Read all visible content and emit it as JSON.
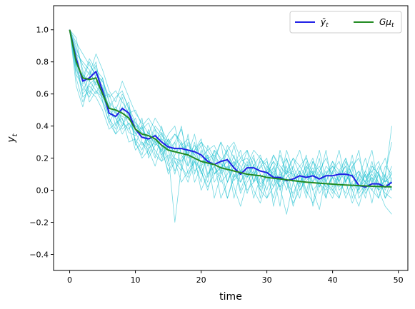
{
  "chart_data": {
    "type": "line",
    "title": "",
    "xlabel": "time",
    "ylabel": "y_t",
    "xlim": [
      -2.45,
      51.45
    ],
    "ylim": [
      -0.5,
      1.15
    ],
    "xticks": [
      0,
      10,
      20,
      30,
      40,
      50
    ],
    "yticks": [
      -0.4,
      -0.2,
      0.0,
      0.2,
      0.4,
      0.6,
      0.8,
      1.0
    ],
    "xtick_labels": [
      "0",
      "10",
      "20",
      "30",
      "40",
      "50"
    ],
    "ytick_labels": [
      "−0.4",
      "−0.2",
      "0.0",
      "0.2",
      "0.4",
      "0.6",
      "0.8",
      "1.0"
    ],
    "grid": false,
    "legend_position": "top-right",
    "colors": {
      "paths": "#17becf",
      "mean": "#1f1fe6",
      "expected": "#228b22"
    },
    "x": [
      0,
      1,
      2,
      3,
      4,
      5,
      6,
      7,
      8,
      9,
      10,
      11,
      12,
      13,
      14,
      15,
      16,
      17,
      18,
      19,
      20,
      21,
      22,
      23,
      24,
      25,
      26,
      27,
      28,
      29,
      30,
      31,
      32,
      33,
      34,
      35,
      36,
      37,
      38,
      39,
      40,
      41,
      42,
      43,
      44,
      45,
      46,
      47,
      48,
      49
    ],
    "series": [
      {
        "name": "ȳ_t",
        "role": "mean",
        "values": [
          1.0,
          0.82,
          0.68,
          0.7,
          0.74,
          0.62,
          0.48,
          0.46,
          0.51,
          0.48,
          0.38,
          0.33,
          0.32,
          0.34,
          0.3,
          0.27,
          0.26,
          0.26,
          0.25,
          0.24,
          0.22,
          0.18,
          0.16,
          0.18,
          0.19,
          0.14,
          0.1,
          0.14,
          0.14,
          0.12,
          0.11,
          0.08,
          0.08,
          0.06,
          0.07,
          0.09,
          0.08,
          0.09,
          0.07,
          0.09,
          0.09,
          0.1,
          0.1,
          0.09,
          0.03,
          0.02,
          0.04,
          0.04,
          0.02,
          0.05
        ]
      },
      {
        "name": "Gμ_t",
        "role": "expected",
        "values": [
          1.0,
          0.8,
          0.7,
          0.69,
          0.7,
          0.6,
          0.51,
          0.5,
          0.48,
          0.45,
          0.38,
          0.35,
          0.34,
          0.32,
          0.28,
          0.25,
          0.24,
          0.23,
          0.22,
          0.2,
          0.18,
          0.17,
          0.16,
          0.14,
          0.13,
          0.12,
          0.11,
          0.1,
          0.095,
          0.09,
          0.08,
          0.075,
          0.07,
          0.065,
          0.06,
          0.055,
          0.05,
          0.047,
          0.044,
          0.041,
          0.038,
          0.035,
          0.033,
          0.031,
          0.029,
          0.027,
          0.025,
          0.023,
          0.022,
          0.021
        ]
      }
    ],
    "sample_paths": [
      [
        1.0,
        0.78,
        0.62,
        0.71,
        0.8,
        0.55,
        0.42,
        0.5,
        0.4,
        0.52,
        0.3,
        0.22,
        0.36,
        0.28,
        0.4,
        0.18,
        0.3,
        0.15,
        0.35,
        0.1,
        0.25,
        0.08,
        0.2,
        0.3,
        0.05,
        0.18,
        0.0,
        0.12,
        0.22,
        -0.05,
        0.15,
        0.1,
        -0.1,
        0.2,
        0.05,
        0.12,
        -0.02,
        0.18,
        0.08,
        0.25,
        0.02,
        0.12,
        0.2,
        -0.05,
        0.1,
        0.05,
        0.18,
        0.0,
        0.15,
        0.1
      ],
      [
        1.0,
        0.9,
        0.75,
        0.6,
        0.72,
        0.68,
        0.55,
        0.4,
        0.58,
        0.45,
        0.42,
        0.35,
        0.28,
        0.38,
        0.2,
        0.32,
        0.25,
        0.4,
        0.15,
        0.3,
        0.1,
        0.22,
        0.05,
        0.12,
        0.28,
        0.2,
        0.15,
        -0.02,
        0.1,
        0.18,
        0.05,
        0.22,
        0.12,
        0.0,
        0.15,
        0.25,
        0.1,
        0.05,
        0.2,
        -0.05,
        0.12,
        0.18,
        0.05,
        0.22,
        0.0,
        0.1,
        -0.08,
        0.12,
        0.2,
        0.05
      ],
      [
        1.0,
        0.7,
        0.55,
        0.65,
        0.6,
        0.7,
        0.45,
        0.35,
        0.5,
        0.55,
        0.28,
        0.4,
        0.3,
        0.2,
        0.35,
        0.25,
        0.1,
        0.28,
        0.22,
        0.35,
        0.15,
        0.05,
        0.25,
        0.1,
        0.2,
        -0.05,
        0.12,
        0.25,
        0.05,
        0.15,
        0.2,
        -0.1,
        0.08,
        0.15,
        -0.05,
        0.1,
        0.22,
        0.0,
        -0.12,
        0.1,
        0.18,
        0.05,
        -0.02,
        0.12,
        0.25,
        0.0,
        0.08,
        -0.05,
        0.1,
        0.0
      ],
      [
        1.0,
        0.85,
        0.8,
        0.75,
        0.65,
        0.58,
        0.6,
        0.48,
        0.42,
        0.38,
        0.45,
        0.3,
        0.25,
        0.35,
        0.22,
        0.28,
        0.18,
        0.12,
        0.3,
        0.2,
        0.28,
        0.1,
        0.15,
        0.05,
        0.1,
        0.22,
        0.05,
        0.15,
        -0.05,
        0.08,
        0.12,
        0.02,
        0.25,
        0.1,
        0.05,
        -0.05,
        0.15,
        0.1,
        0.25,
        0.05,
        -0.02,
        0.1,
        0.15,
        0.0,
        0.08,
        0.2,
        0.05,
        0.12,
        -0.05,
        0.08
      ],
      [
        1.0,
        0.95,
        0.72,
        0.68,
        0.78,
        0.62,
        0.52,
        0.58,
        0.62,
        0.5,
        0.4,
        0.38,
        0.42,
        0.3,
        0.25,
        0.35,
        0.4,
        0.22,
        0.15,
        0.25,
        0.3,
        0.2,
        0.1,
        0.18,
        0.05,
        0.15,
        0.25,
        0.08,
        0.2,
        0.1,
        0.0,
        0.15,
        0.05,
        0.25,
        0.12,
        0.02,
        0.18,
        0.05,
        0.12,
        0.2,
        0.08,
        -0.05,
        0.1,
        0.18,
        0.05,
        0.12,
        0.25,
        0.02,
        0.1,
        0.3
      ],
      [
        1.0,
        0.75,
        0.68,
        0.8,
        0.7,
        0.65,
        0.48,
        0.45,
        0.35,
        0.42,
        0.35,
        0.45,
        0.2,
        0.28,
        0.32,
        0.15,
        0.22,
        0.3,
        0.1,
        0.18,
        0.05,
        0.28,
        0.2,
        0.12,
        0.25,
        0.08,
        0.18,
        0.2,
        0.12,
        0.0,
        0.1,
        0.18,
        0.02,
        0.12,
        0.2,
        0.1,
        -0.05,
        0.12,
        0.02,
        0.15,
        0.1,
        0.25,
        0.05,
        0.15,
        -0.05,
        0.02,
        0.15,
        0.1,
        0.0,
        0.12
      ],
      [
        1.0,
        0.82,
        0.58,
        0.62,
        0.58,
        0.5,
        0.38,
        0.42,
        0.45,
        0.3,
        0.32,
        0.25,
        0.38,
        0.22,
        0.18,
        0.3,
        0.12,
        0.2,
        0.25,
        0.05,
        0.15,
        0.2,
        -0.05,
        0.1,
        0.15,
        0.02,
        -0.1,
        0.05,
        0.12,
        0.0,
        -0.05,
        0.08,
        0.02,
        -0.15,
        0.05,
        0.12,
        0.0,
        -0.08,
        0.1,
        0.02,
        -0.05,
        0.08,
        0.15,
        0.0,
        -0.1,
        0.05,
        0.0,
        0.1,
        -0.05,
        0.02
      ],
      [
        1.0,
        0.88,
        0.78,
        0.72,
        0.85,
        0.75,
        0.62,
        0.55,
        0.68,
        0.58,
        0.48,
        0.42,
        0.35,
        0.45,
        0.38,
        0.3,
        0.35,
        0.28,
        0.32,
        0.22,
        0.3,
        0.25,
        0.28,
        0.18,
        0.25,
        0.3,
        0.2,
        0.15,
        0.25,
        0.2,
        0.12,
        0.22,
        0.15,
        0.1,
        0.2,
        0.15,
        0.08,
        0.18,
        0.12,
        0.05,
        0.15,
        0.1,
        0.2,
        0.08,
        0.12,
        0.05,
        0.15,
        0.1,
        0.05,
        0.15
      ],
      [
        1.0,
        0.72,
        0.65,
        0.58,
        0.68,
        0.6,
        0.45,
        0.38,
        0.52,
        0.4,
        0.25,
        0.3,
        0.22,
        0.32,
        0.25,
        0.12,
        0.2,
        0.15,
        0.05,
        0.18,
        0.12,
        0.0,
        0.15,
        0.08,
        -0.05,
        0.1,
        0.05,
        0.12,
        0.0,
        -0.08,
        0.05,
        0.12,
        0.0,
        0.08,
        -0.1,
        0.05,
        0.1,
        0.0,
        0.05,
        -0.05,
        0.12,
        0.0,
        0.05,
        -0.08,
        0.02,
        0.1,
        0.0,
        -0.05,
        0.08,
        0.0
      ],
      [
        1.0,
        0.92,
        0.85,
        0.78,
        0.72,
        0.68,
        0.58,
        0.62,
        0.55,
        0.48,
        0.5,
        0.4,
        0.45,
        0.38,
        0.32,
        0.28,
        0.35,
        0.3,
        0.22,
        0.28,
        0.2,
        0.25,
        0.18,
        0.3,
        0.22,
        0.15,
        0.2,
        0.25,
        0.15,
        0.22,
        0.1,
        0.18,
        0.12,
        0.2,
        0.08,
        0.15,
        0.2,
        0.1,
        0.15,
        0.05,
        0.18,
        0.12,
        0.05,
        0.15,
        0.2,
        0.08,
        0.12,
        0.18,
        0.05,
        0.1
      ],
      [
        1.0,
        0.65,
        0.52,
        0.68,
        0.62,
        0.55,
        0.42,
        0.35,
        0.4,
        0.48,
        0.3,
        0.2,
        0.25,
        0.15,
        0.28,
        0.1,
        0.18,
        0.05,
        0.12,
        0.2,
        0.0,
        0.1,
        0.18,
        -0.05,
        0.05,
        0.15,
        -0.02,
        0.08,
        0.15,
        0.02,
        0.1,
        -0.05,
        0.12,
        0.05,
        -0.02,
        0.08,
        0.15,
        -0.1,
        0.05,
        0.12,
        0.0,
        -0.05,
        0.1,
        0.02,
        0.08,
        -0.05,
        0.12,
        0.05,
        -0.02,
        -0.05
      ],
      [
        1.0,
        0.8,
        0.7,
        0.82,
        0.75,
        0.7,
        0.55,
        0.5,
        0.6,
        0.52,
        0.42,
        0.38,
        0.3,
        0.4,
        0.35,
        0.25,
        0.3,
        0.38,
        0.2,
        0.25,
        0.32,
        0.15,
        0.25,
        0.2,
        0.12,
        0.28,
        0.1,
        0.18,
        0.05,
        0.2,
        0.15,
        0.08,
        0.22,
        0.1,
        0.15,
        0.05,
        0.12,
        0.2,
        0.02,
        0.1,
        0.15,
        0.05,
        0.18,
        0.1,
        0.0,
        0.12,
        0.05,
        0.15,
        0.08,
        0.4
      ],
      [
        1.0,
        0.78,
        0.72,
        0.55,
        0.62,
        0.58,
        0.5,
        0.45,
        0.38,
        0.42,
        0.36,
        0.28,
        0.32,
        0.25,
        0.18,
        0.22,
        -0.2,
        0.15,
        0.08,
        0.2,
        0.12,
        0.02,
        0.1,
        0.15,
        -0.05,
        0.08,
        0.12,
        0.0,
        0.05,
        0.1,
        -0.05,
        0.02,
        0.1,
        0.05,
        -0.08,
        0.0,
        0.08,
        0.12,
        -0.02,
        0.05,
        0.0,
        0.1,
        -0.05,
        0.05,
        0.12,
        -0.02,
        0.05,
        0.0,
        -0.1,
        -0.15
      ],
      [
        1.0,
        0.86,
        0.66,
        0.74,
        0.66,
        0.64,
        0.52,
        0.48,
        0.46,
        0.44,
        0.4,
        0.36,
        0.34,
        0.3,
        0.36,
        0.28,
        0.24,
        0.26,
        0.28,
        0.22,
        0.18,
        0.2,
        0.22,
        0.16,
        0.14,
        0.18,
        0.12,
        0.16,
        0.1,
        0.14,
        0.18,
        0.08,
        0.06,
        0.12,
        0.1,
        0.04,
        0.08,
        0.14,
        0.06,
        0.02,
        0.08,
        0.06,
        0.12,
        0.04,
        0.02,
        0.06,
        0.1,
        0.02,
        0.06,
        0.04
      ],
      [
        1.0,
        0.76,
        0.6,
        0.66,
        0.7,
        0.56,
        0.46,
        0.52,
        0.44,
        0.36,
        0.34,
        0.4,
        0.26,
        0.3,
        0.24,
        0.32,
        0.2,
        0.18,
        0.24,
        0.12,
        0.16,
        0.22,
        0.1,
        0.14,
        0.18,
        0.06,
        0.12,
        0.08,
        0.16,
        0.04,
        0.1,
        0.14,
        0.02,
        0.08,
        0.12,
        0.0,
        0.06,
        0.1,
        0.04,
        0.0,
        0.08,
        0.02,
        0.06,
        0.1,
        -0.02,
        0.04,
        0.08,
        0.0,
        0.04,
        0.02
      ]
    ]
  },
  "legend": {
    "mean_label": "ȳ_t",
    "expected_label": "Gμ_t"
  }
}
